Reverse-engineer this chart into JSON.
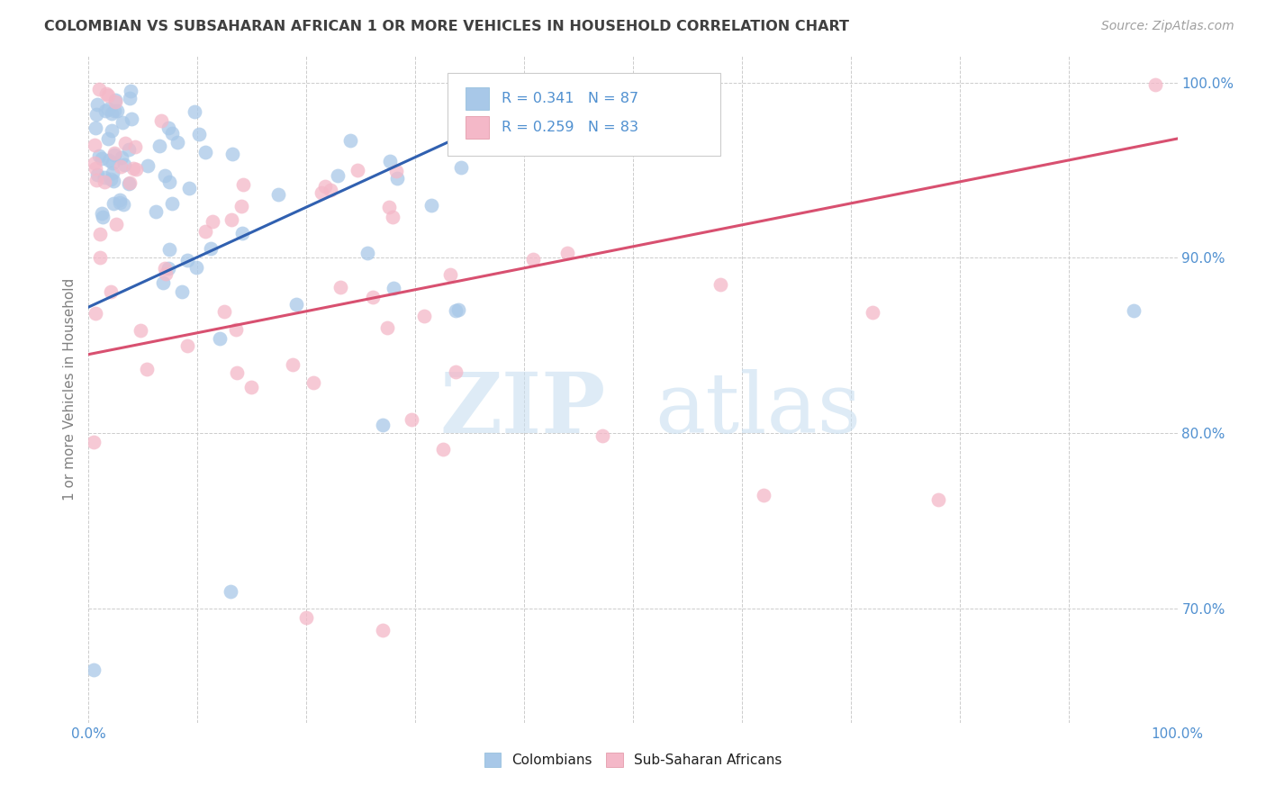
{
  "title": "COLOMBIAN VS SUBSAHARAN AFRICAN 1 OR MORE VEHICLES IN HOUSEHOLD CORRELATION CHART",
  "source": "Source: ZipAtlas.com",
  "ylabel": "1 or more Vehicles in Household",
  "xlim": [
    0.0,
    1.0
  ],
  "ylim": [
    0.635,
    1.015
  ],
  "yticks": [
    0.7,
    0.8,
    0.9,
    1.0
  ],
  "ytick_labels": [
    "70.0%",
    "80.0%",
    "90.0%",
    "100.0%"
  ],
  "xtick_positions": [
    0.0,
    0.1,
    0.2,
    0.3,
    0.4,
    0.5,
    0.6,
    0.7,
    0.8,
    0.9,
    1.0
  ],
  "xtick_labels": [
    "0.0%",
    "",
    "",
    "",
    "",
    "",
    "",
    "",
    "",
    "",
    "100.0%"
  ],
  "colombians_color": "#a8c8e8",
  "subsaharan_color": "#f4b8c8",
  "trendline_colombian_color": "#3060b0",
  "trendline_subsaharan_color": "#d85070",
  "R_colombian": 0.341,
  "N_colombian": 87,
  "R_subsaharan": 0.259,
  "N_subsaharan": 83,
  "legend_label_colombian": "Colombians",
  "legend_label_subsaharan": "Sub-Saharan Africans",
  "watermark_zip": "ZIP",
  "watermark_atlas": "atlas",
  "background_color": "#ffffff",
  "grid_color": "#cccccc",
  "title_color": "#404040",
  "ylabel_color": "#808080",
  "tick_label_color": "#5090d0",
  "source_color": "#a0a0a0",
  "legend_text_color": "#202020",
  "blue_trendline_start_x": 0.0,
  "blue_trendline_start_y": 0.872,
  "blue_trendline_end_x": 0.46,
  "blue_trendline_end_y": 1.003,
  "pink_trendline_start_x": 0.0,
  "pink_trendline_start_y": 0.845,
  "pink_trendline_end_x": 1.0,
  "pink_trendline_end_y": 0.968,
  "scatter_marker_size": 130,
  "scatter_alpha": 0.75,
  "scatter_linewidth": 1.2
}
